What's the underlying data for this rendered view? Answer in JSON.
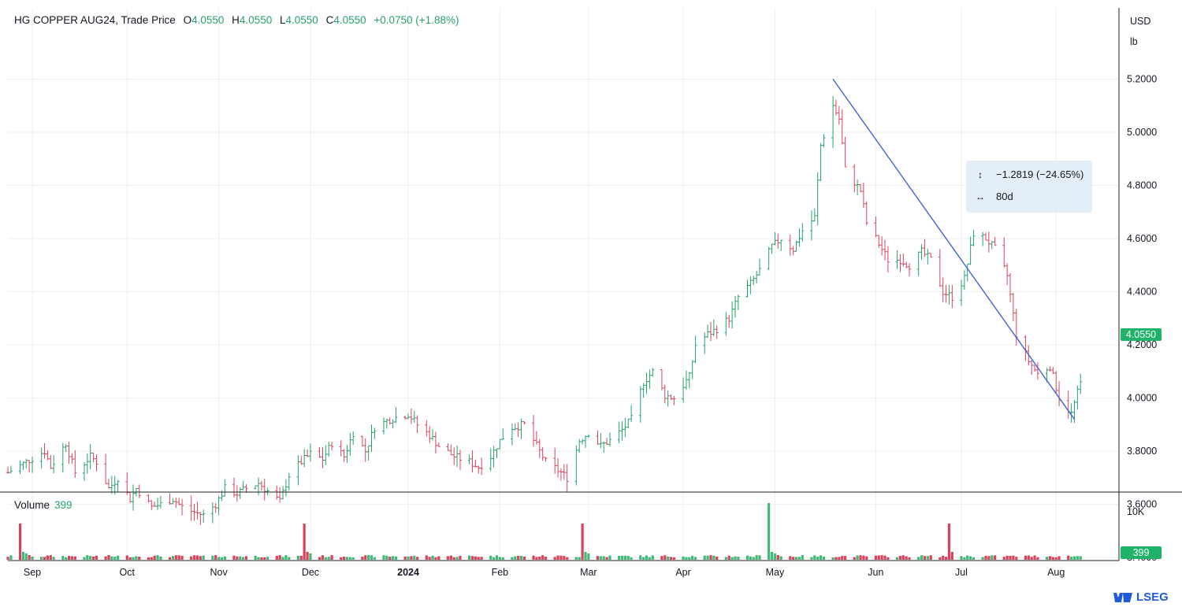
{
  "header": {
    "symbol": "HG COPPER AUG24, Trade Price",
    "open_label": "O",
    "open": "4.0550",
    "high_label": "H",
    "high": "4.0550",
    "low_label": "L",
    "low": "4.0550",
    "close_label": "C",
    "close": "4.0550",
    "change": "+0.0750 (+1.88%)"
  },
  "price_unit": [
    "USD",
    "lb"
  ],
  "volume": {
    "label": "Volume",
    "value": "399",
    "axis_label": "10K",
    "badge": "399"
  },
  "last_price_badge": "4.0550",
  "measure_tooltip": {
    "price_change": "−1.2819 (−24.65%)",
    "duration": "80d"
  },
  "logo": "LSEG",
  "colors": {
    "up": "#26a269",
    "down": "#d8435c",
    "trendline": "#3d63d6",
    "volume_up": "#41b979",
    "volume_down": "#d8435c",
    "grid": "#eeeeee"
  },
  "chart_data": {
    "type": "ohlc",
    "title": "HG COPPER AUG24, Trade Price",
    "y_axis": {
      "ticks": [
        "3.4000",
        "3.6000",
        "3.8000",
        "4.0000",
        "4.2000",
        "4.4000",
        "4.6000",
        "4.8000",
        "5.0000",
        "5.2000"
      ],
      "range": [
        3.35,
        5.32
      ],
      "position": "right"
    },
    "x_axis": {
      "ticks": [
        "Sep",
        "Oct",
        "Nov",
        "Dec",
        "2024",
        "Feb",
        "Mar",
        "Apr",
        "May",
        "Jun",
        "Jul",
        "Aug"
      ],
      "tick_dates": [
        "2023-09-01",
        "2023-10-02",
        "2023-11-01",
        "2023-12-01",
        "2024-01-02",
        "2024-02-01",
        "2024-03-01",
        "2024-04-01",
        "2024-05-01",
        "2024-06-03",
        "2024-07-01",
        "2024-08-01"
      ],
      "range": [
        "2023-08-24",
        "2024-08-19"
      ]
    },
    "series": [
      {
        "date": "2023-08-24",
        "close": 3.72
      },
      {
        "date": "2023-08-30",
        "close": 3.76
      },
      {
        "date": "2023-09-05",
        "close": 3.8
      },
      {
        "date": "2023-09-07",
        "close": 3.74
      },
      {
        "date": "2023-09-12",
        "close": 3.83
      },
      {
        "date": "2023-09-15",
        "close": 3.72
      },
      {
        "date": "2023-09-20",
        "close": 3.78
      },
      {
        "date": "2023-09-22",
        "close": 3.76
      },
      {
        "date": "2023-09-26",
        "close": 3.66
      },
      {
        "date": "2023-09-29",
        "close": 3.7
      },
      {
        "date": "2023-10-03",
        "close": 3.62
      },
      {
        "date": "2023-10-05",
        "close": 3.66
      },
      {
        "date": "2023-10-10",
        "close": 3.59
      },
      {
        "date": "2023-10-13",
        "close": 3.6
      },
      {
        "date": "2023-10-17",
        "close": 3.62
      },
      {
        "date": "2023-10-20",
        "close": 3.59
      },
      {
        "date": "2023-10-24",
        "close": 3.57
      },
      {
        "date": "2023-10-27",
        "close": 3.56
      },
      {
        "date": "2023-10-31",
        "close": 3.6
      },
      {
        "date": "2023-11-03",
        "close": 3.66
      },
      {
        "date": "2023-11-07",
        "close": 3.64
      },
      {
        "date": "2023-11-10",
        "close": 3.66
      },
      {
        "date": "2023-11-14",
        "close": 3.68
      },
      {
        "date": "2023-11-17",
        "close": 3.65
      },
      {
        "date": "2023-11-21",
        "close": 3.61
      },
      {
        "date": "2023-11-24",
        "close": 3.71
      },
      {
        "date": "2023-11-28",
        "close": 3.76
      },
      {
        "date": "2023-12-01",
        "close": 3.79
      },
      {
        "date": "2023-12-05",
        "close": 3.77
      },
      {
        "date": "2023-12-08",
        "close": 3.83
      },
      {
        "date": "2023-12-12",
        "close": 3.78
      },
      {
        "date": "2023-12-15",
        "close": 3.87
      },
      {
        "date": "2023-12-19",
        "close": 3.8
      },
      {
        "date": "2023-12-22",
        "close": 3.89
      },
      {
        "date": "2023-12-27",
        "close": 3.92
      },
      {
        "date": "2024-01-02",
        "close": 3.94
      },
      {
        "date": "2024-01-05",
        "close": 3.9
      },
      {
        "date": "2024-01-09",
        "close": 3.86
      },
      {
        "date": "2024-01-12",
        "close": 3.82
      },
      {
        "date": "2024-01-17",
        "close": 3.78
      },
      {
        "date": "2024-01-22",
        "close": 3.76
      },
      {
        "date": "2024-01-25",
        "close": 3.74
      },
      {
        "date": "2024-01-29",
        "close": 3.78
      },
      {
        "date": "2024-02-01",
        "close": 3.84
      },
      {
        "date": "2024-02-05",
        "close": 3.89
      },
      {
        "date": "2024-02-09",
        "close": 3.9
      },
      {
        "date": "2024-02-13",
        "close": 3.82
      },
      {
        "date": "2024-02-16",
        "close": 3.76
      },
      {
        "date": "2024-02-21",
        "close": 3.72
      },
      {
        "date": "2024-02-23",
        "close": 3.7
      },
      {
        "date": "2024-02-27",
        "close": 3.84
      },
      {
        "date": "2024-03-01",
        "close": 3.87
      },
      {
        "date": "2024-03-05",
        "close": 3.82
      },
      {
        "date": "2024-03-08",
        "close": 3.84
      },
      {
        "date": "2024-03-12",
        "close": 3.88
      },
      {
        "date": "2024-03-15",
        "close": 3.92
      },
      {
        "date": "2024-03-19",
        "close": 4.06
      },
      {
        "date": "2024-03-22",
        "close": 4.1
      },
      {
        "date": "2024-03-26",
        "close": 4.01
      },
      {
        "date": "2024-03-29",
        "close": 4.0
      },
      {
        "date": "2024-04-03",
        "close": 4.08
      },
      {
        "date": "2024-04-05",
        "close": 4.2
      },
      {
        "date": "2024-04-09",
        "close": 4.24
      },
      {
        "date": "2024-04-12",
        "close": 4.26
      },
      {
        "date": "2024-04-16",
        "close": 4.3
      },
      {
        "date": "2024-04-19",
        "close": 4.38
      },
      {
        "date": "2024-04-23",
        "close": 4.43
      },
      {
        "date": "2024-04-26",
        "close": 4.48
      },
      {
        "date": "2024-04-30",
        "close": 4.57
      },
      {
        "date": "2024-05-03",
        "close": 4.6
      },
      {
        "date": "2024-05-07",
        "close": 4.56
      },
      {
        "date": "2024-05-10",
        "close": 4.63
      },
      {
        "date": "2024-05-14",
        "close": 4.68
      },
      {
        "date": "2024-05-16",
        "close": 4.95
      },
      {
        "date": "2024-05-20",
        "close": 5.1
      },
      {
        "date": "2024-05-22",
        "close": 5.05
      },
      {
        "date": "2024-05-24",
        "close": 4.86
      },
      {
        "date": "2024-05-29",
        "close": 4.78
      },
      {
        "date": "2024-05-31",
        "close": 4.66
      },
      {
        "date": "2024-06-04",
        "close": 4.58
      },
      {
        "date": "2024-06-07",
        "close": 4.52
      },
      {
        "date": "2024-06-11",
        "close": 4.52
      },
      {
        "date": "2024-06-14",
        "close": 4.5
      },
      {
        "date": "2024-06-18",
        "close": 4.55
      },
      {
        "date": "2024-06-21",
        "close": 4.52
      },
      {
        "date": "2024-06-25",
        "close": 4.4
      },
      {
        "date": "2024-06-28",
        "close": 4.38
      },
      {
        "date": "2024-07-02",
        "close": 4.45
      },
      {
        "date": "2024-07-05",
        "close": 4.62
      },
      {
        "date": "2024-07-09",
        "close": 4.6
      },
      {
        "date": "2024-07-12",
        "close": 4.56
      },
      {
        "date": "2024-07-16",
        "close": 4.46
      },
      {
        "date": "2024-07-19",
        "close": 4.24
      },
      {
        "date": "2024-07-23",
        "close": 4.14
      },
      {
        "date": "2024-07-26",
        "close": 4.09
      },
      {
        "date": "2024-07-30",
        "close": 4.12
      },
      {
        "date": "2024-08-02",
        "close": 4.0
      },
      {
        "date": "2024-08-06",
        "close": 3.94
      },
      {
        "date": "2024-08-08",
        "close": 4.02
      },
      {
        "date": "2024-08-09",
        "close": 4.055
      }
    ],
    "volume_spikes": [
      {
        "date": "2023-08-28",
        "volume": "high"
      },
      {
        "date": "2023-11-29",
        "volume": "high"
      },
      {
        "date": "2024-02-28",
        "volume": "high"
      },
      {
        "date": "2024-04-29",
        "volume": "highest"
      },
      {
        "date": "2024-06-27",
        "volume": "high"
      }
    ],
    "trendline": {
      "from": {
        "date": "2024-05-20",
        "price": 5.2
      },
      "to": {
        "date": "2024-08-07",
        "price": 3.92
      }
    },
    "measurement": {
      "price_change": -1.2819,
      "percent_change": -24.65,
      "days": 80
    },
    "last_price": 4.055,
    "last_volume": 399,
    "grid": true
  }
}
